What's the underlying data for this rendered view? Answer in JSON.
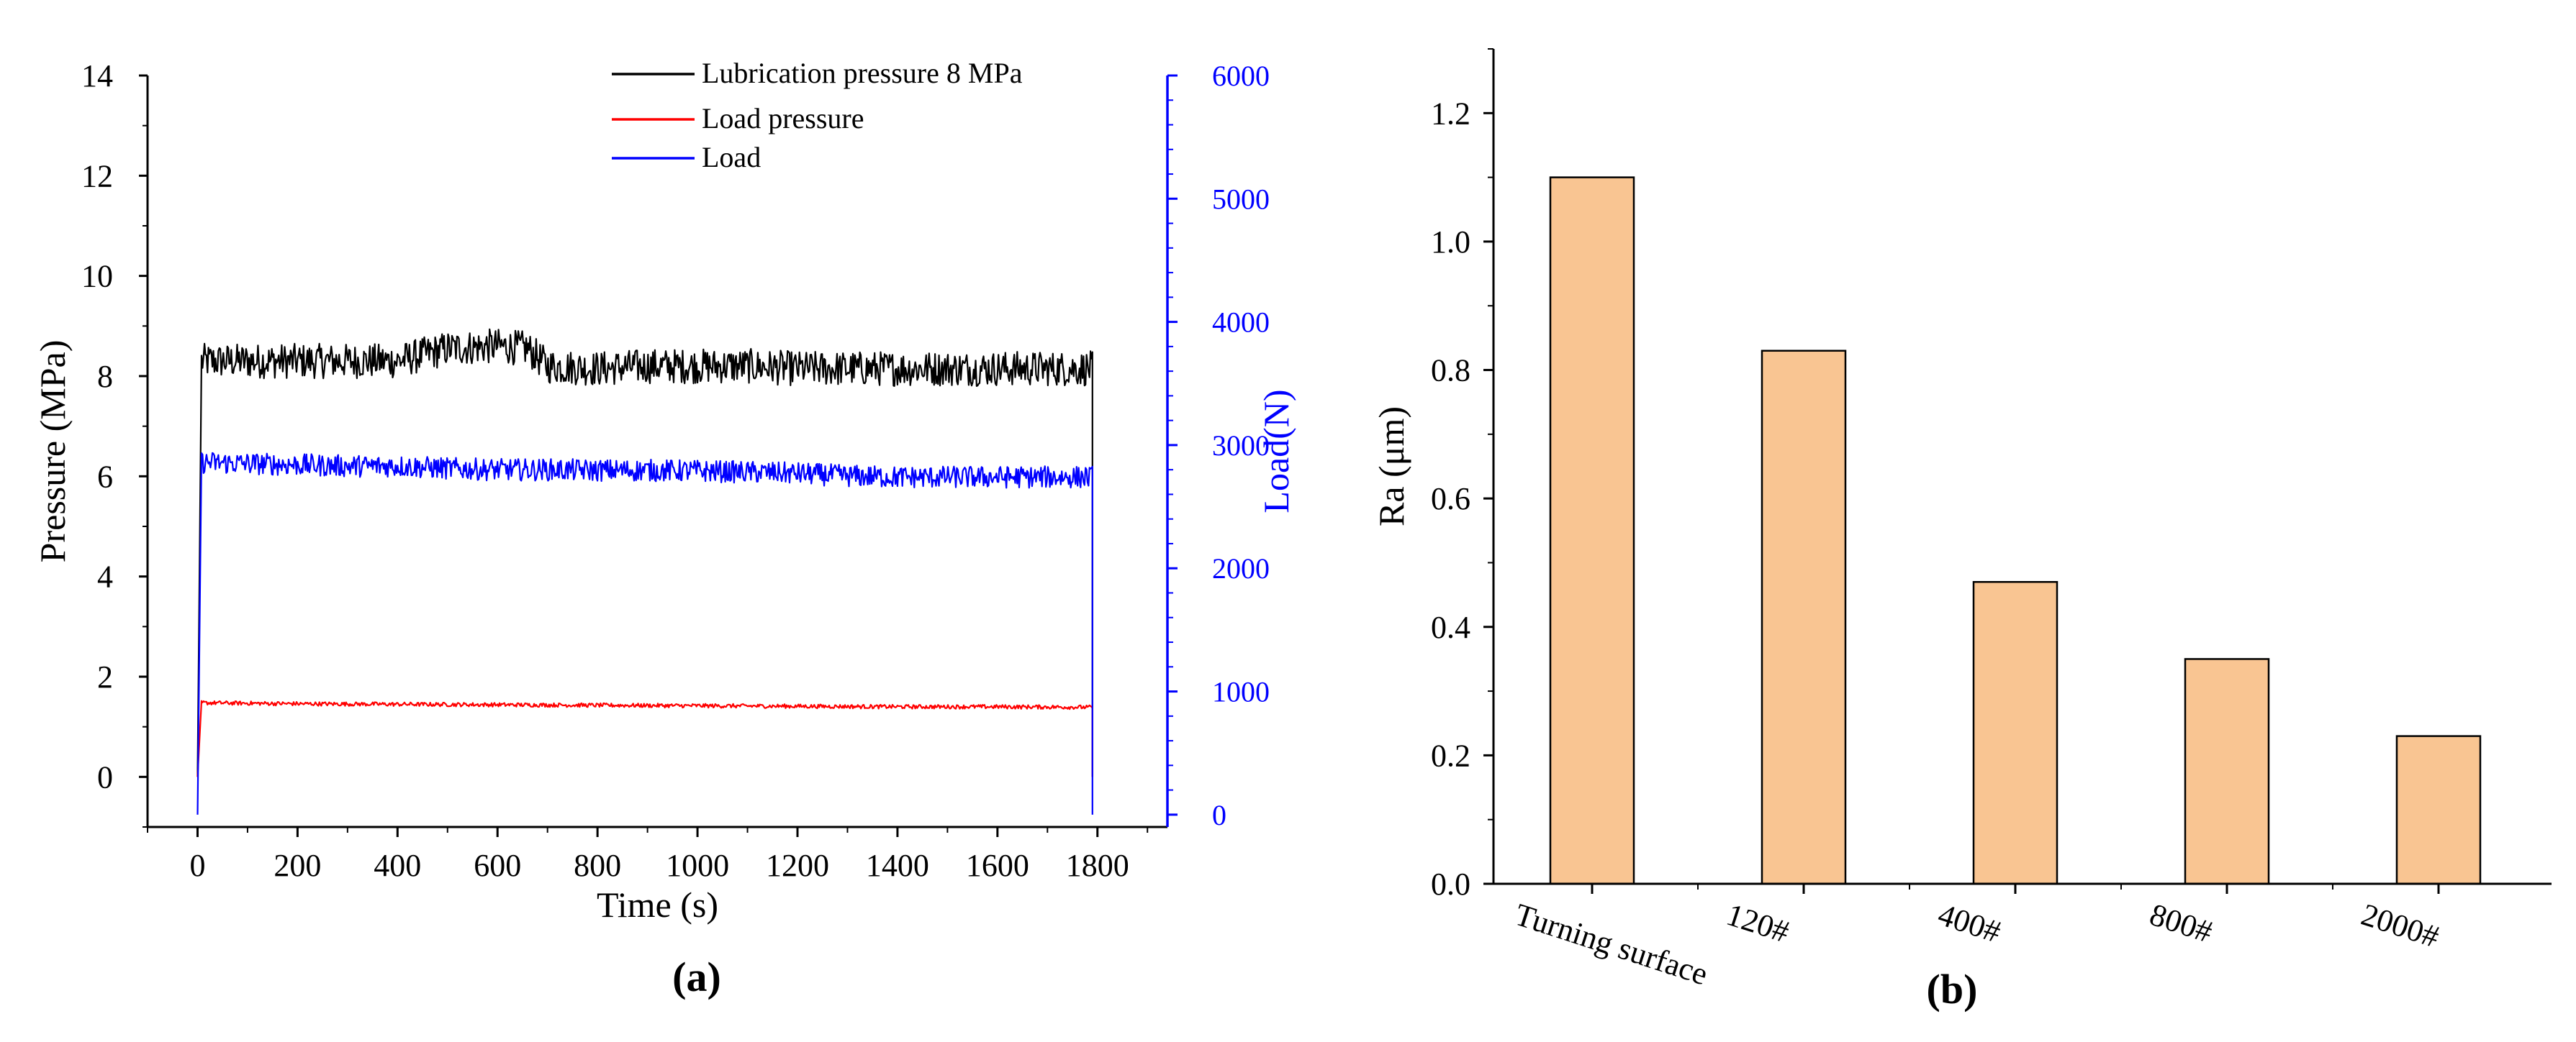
{
  "colors": {
    "lubrication": "#000000",
    "load_pressure": "#ff0000",
    "load": "#0000ff",
    "bar_fill": "#f9c592",
    "axis": "#000000"
  },
  "chart_data": [
    {
      "type": "line",
      "panel_label": "(a)",
      "xlabel": "Time (s)",
      "ylabel": "Pressure (MPa)",
      "y2label": "Load(N)",
      "xlim": [
        -100,
        1940
      ],
      "ylim": [
        -1,
        14
      ],
      "y2lim": [
        -100,
        6000
      ],
      "xticks": [
        0,
        200,
        400,
        600,
        800,
        1000,
        1200,
        1400,
        1600,
        1800
      ],
      "yticks": [
        0,
        2,
        4,
        6,
        8,
        10,
        12,
        14
      ],
      "y2ticks": [
        0,
        1000,
        2000,
        3000,
        4000,
        5000,
        6000
      ],
      "legend": [
        "Lubrication pressure 8 MPa",
        "Load pressure",
        "Load"
      ],
      "series": [
        {
          "name": "Lubrication pressure 8 MPa",
          "axis": "left",
          "start_time": 0,
          "end_time": 1790,
          "x": [
            0,
            100,
            200,
            300,
            400,
            500,
            600,
            660,
            700,
            800,
            900,
            1000,
            1100,
            1200,
            1300,
            1400,
            1500,
            1600,
            1700,
            1790
          ],
          "y": [
            8.3,
            8.3,
            8.3,
            8.3,
            8.3,
            8.55,
            8.6,
            8.55,
            8.2,
            8.15,
            8.2,
            8.2,
            8.2,
            8.15,
            8.15,
            8.15,
            8.15,
            8.15,
            8.15,
            8.15
          ],
          "noise": 0.35
        },
        {
          "name": "Load pressure",
          "axis": "left",
          "start_time": 0,
          "end_time": 1790,
          "x": [
            0,
            200,
            400,
            600,
            800,
            1000,
            1200,
            1400,
            1600,
            1790
          ],
          "y": [
            1.48,
            1.46,
            1.45,
            1.44,
            1.43,
            1.42,
            1.41,
            1.4,
            1.4,
            1.39
          ],
          "noise": 0.04
        },
        {
          "name": "Load",
          "axis": "right",
          "start_time": 0,
          "end_time": 1790,
          "x": [
            0,
            100,
            200,
            300,
            400,
            500,
            600,
            700,
            800,
            900,
            1000,
            1100,
            1200,
            1300,
            1400,
            1500,
            1600,
            1700,
            1790
          ],
          "y": [
            2860,
            2850,
            2840,
            2830,
            2830,
            2810,
            2800,
            2800,
            2795,
            2795,
            2790,
            2780,
            2770,
            2750,
            2740,
            2740,
            2740,
            2740,
            2740
          ],
          "noise": 90
        }
      ]
    },
    {
      "type": "bar",
      "panel_label": "(b)",
      "xlabel": "",
      "ylabel": "Ra (μm)",
      "ylim": [
        0,
        1.3
      ],
      "yticks": [
        0.0,
        0.2,
        0.4,
        0.6,
        0.8,
        1.0,
        1.2
      ],
      "ytick_labels": [
        "0.0",
        "0.2",
        "0.4",
        "0.6",
        "0.8",
        "1.0",
        "1.2"
      ],
      "categories": [
        "Turning surface",
        "120#",
        "400#",
        "800#",
        "2000#"
      ],
      "values": [
        1.1,
        0.83,
        0.47,
        0.35,
        0.23
      ]
    }
  ]
}
